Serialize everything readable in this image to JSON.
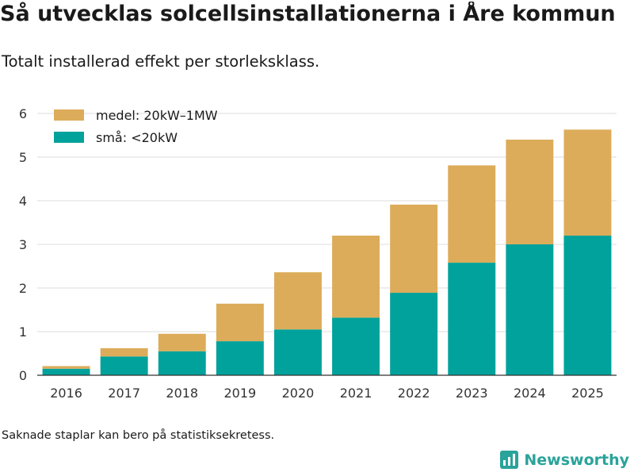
{
  "header": {
    "title": "Så utvecklas solcellsinstallationerna i Åre kommun",
    "subtitle": "Totalt installerad effekt per storleksklass."
  },
  "footnote": "Saknade staplar kan bero på statistiksekretess.",
  "brand": {
    "name": "Newsworthy"
  },
  "colors": {
    "medel": "#dcac5a",
    "sma": "#00a29b",
    "grid": "#dddddd",
    "axis": "#333333"
  },
  "chart_data": {
    "type": "bar",
    "stacked": true,
    "title": "Så utvecklas solcellsinstallationerna i Åre kommun",
    "subtitle": "Totalt installerad effekt per storleksklass.",
    "xlabel": "",
    "ylabel": "",
    "ylim": [
      0,
      6
    ],
    "yticks": [
      0,
      1,
      2,
      3,
      4,
      5,
      6
    ],
    "grid": true,
    "legend_position": "top-left",
    "categories": [
      "2016",
      "2017",
      "2018",
      "2019",
      "2020",
      "2021",
      "2022",
      "2023",
      "2024",
      "2025"
    ],
    "series": [
      {
        "name": "små: <20kW",
        "key": "sma",
        "values": [
          0.15,
          0.43,
          0.55,
          0.78,
          1.05,
          1.32,
          1.89,
          2.58,
          3.0,
          3.2
        ]
      },
      {
        "name": "medel: 20kW–1MW",
        "key": "medel",
        "values": [
          0.06,
          0.19,
          0.4,
          0.86,
          1.31,
          1.88,
          2.02,
          2.23,
          2.4,
          2.43
        ]
      }
    ],
    "legend": [
      {
        "label": "medel: 20kW–1MW",
        "key": "medel"
      },
      {
        "label": "små: <20kW",
        "key": "sma"
      }
    ]
  }
}
